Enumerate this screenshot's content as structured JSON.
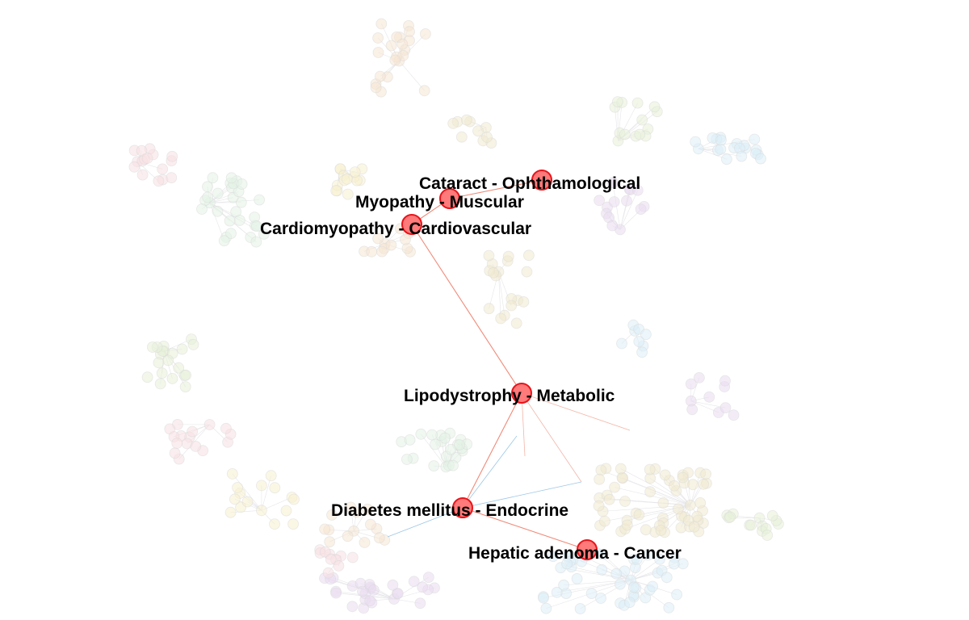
{
  "graph": {
    "highlight_color": "#ff7a7a",
    "highlight_stroke": "#e8141a",
    "edge_color": "#f08a78",
    "highlighted_nodes": [
      {
        "id": "cataract",
        "label": "Cataract - Ophthamological"
      },
      {
        "id": "myopathy",
        "label": "Myopathy - Muscular"
      },
      {
        "id": "cardiomyopathy",
        "label": "Cardiomyopathy - Cardiovascular"
      },
      {
        "id": "lipodystrophy",
        "label": "Lipodystrophy - Metabolic"
      },
      {
        "id": "diabetes",
        "label": "Diabetes mellitus - Endocrine"
      },
      {
        "id": "hepatic",
        "label": "Hepatic adenoma - Cancer"
      }
    ],
    "highlighted_edges": [
      [
        "cardiomyopathy",
        "lipodystrophy"
      ],
      [
        "cardiomyopathy",
        "myopathy"
      ],
      [
        "myopathy",
        "cataract"
      ],
      [
        "lipodystrophy",
        "diabetes"
      ],
      [
        "diabetes",
        "hepatic"
      ]
    ],
    "background_palette": [
      "#f5e6d3",
      "#f0ead0",
      "#e8f0d8",
      "#dceef8",
      "#eadcf0",
      "#f8e0e4",
      "#e3f2e6",
      "#f7f1cf"
    ]
  }
}
